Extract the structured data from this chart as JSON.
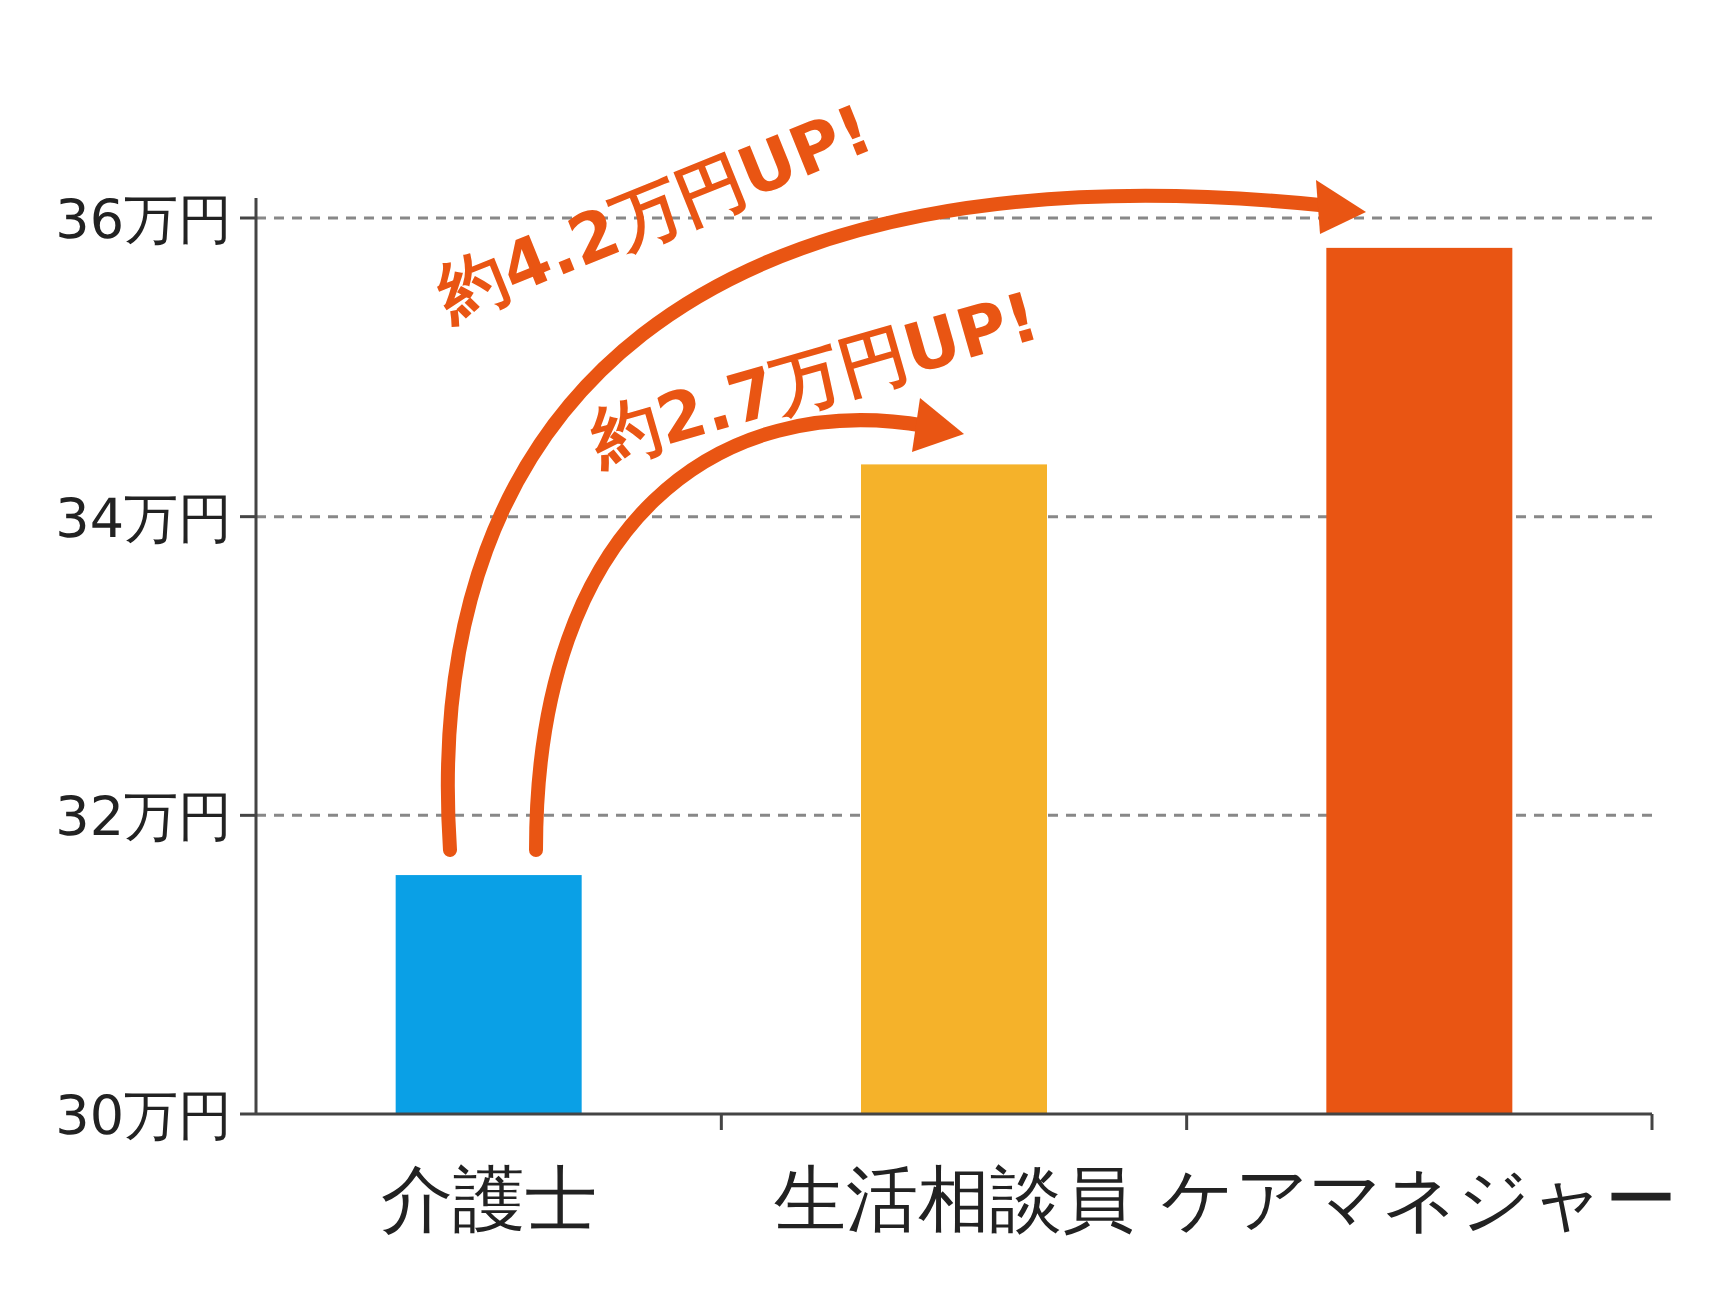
{
  "chart_data": {
    "type": "bar",
    "categories": [
      "介護士",
      "生活相談員",
      "ケアマネジャー"
    ],
    "values": [
      31.6,
      34.35,
      35.8
    ],
    "colors": [
      "#0aa0e6",
      "#f5b22a",
      "#e95513"
    ],
    "ylim": [
      30,
      36
    ],
    "yticks": [
      {
        "value": 30,
        "label": "30万円"
      },
      {
        "value": 32,
        "label": "32万円"
      },
      {
        "value": 34,
        "label": "34万円"
      },
      {
        "value": 36,
        "label": "36万円"
      }
    ],
    "grid": "y",
    "annotations": [
      "約4.2万円UP!",
      "約2.7万円UP!"
    ]
  }
}
